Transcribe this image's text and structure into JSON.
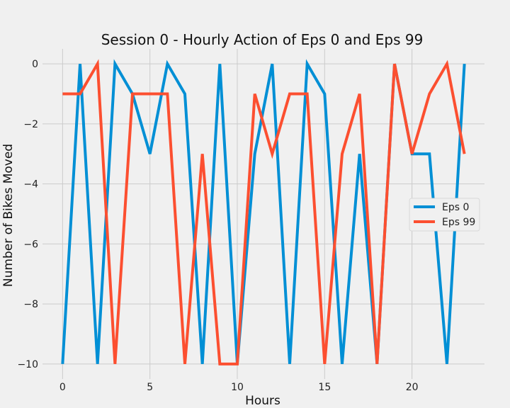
{
  "chart_data": {
    "type": "line",
    "title": "Session 0 - Hourly Action of Eps 0 and Eps 99",
    "xlabel": "Hours",
    "ylabel": "Number of Bikes Moved",
    "xlim": [
      -1.15,
      24.15
    ],
    "ylim": [
      -10.5,
      0.5
    ],
    "xticks": [
      0,
      5,
      10,
      15,
      20
    ],
    "yticks": [
      0,
      -2,
      -4,
      -6,
      -8,
      -10
    ],
    "xtick_labels": [
      "0",
      "5",
      "10",
      "15",
      "20"
    ],
    "ytick_labels": [
      "0",
      "−2",
      "−4",
      "−6",
      "−8",
      "−10"
    ],
    "grid": true,
    "legend_position": "center-right",
    "x": [
      0,
      1,
      2,
      3,
      4,
      5,
      6,
      7,
      8,
      9,
      10,
      11,
      12,
      13,
      14,
      15,
      16,
      17,
      18,
      19,
      20,
      21,
      22,
      23
    ],
    "series": [
      {
        "name": "Eps 0",
        "color": "#008fd5",
        "values": [
          -10,
          0,
          -10,
          0,
          -1,
          -3,
          0,
          -1,
          -10,
          0,
          -10,
          -3,
          0,
          -10,
          0,
          -1,
          -10,
          -3,
          -10,
          0,
          -3,
          -3,
          -10,
          0
        ]
      },
      {
        "name": "Eps 99",
        "color": "#fc4f30",
        "values": [
          -1,
          -1,
          0,
          -10,
          -1,
          -1,
          -1,
          -10,
          -3,
          -10,
          -10,
          -1,
          -3,
          -1,
          -1,
          -10,
          -3,
          -1,
          -10,
          0,
          -3,
          -1,
          0,
          -3
        ]
      }
    ]
  }
}
